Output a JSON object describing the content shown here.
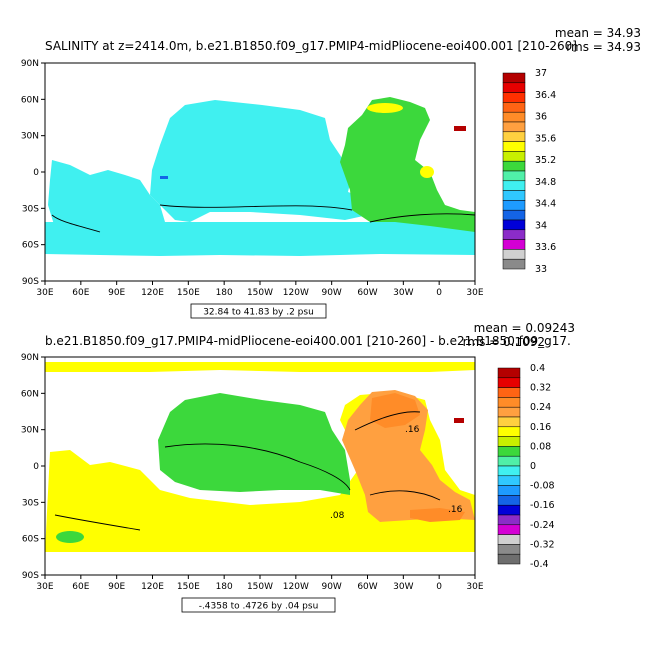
{
  "colors": {
    "land": "#ffffff",
    "c32_8": "#8a8a8a",
    "c33_0": "#d0d0d0",
    "c33_2": "#d400d4",
    "c33_4": "#8b2cc8",
    "c33_6": "#0000d8",
    "c33_8": "#1464e6",
    "c34_0": "#1e9bff",
    "c34_2": "#30c8ff",
    "c34_4": "#40f0f0",
    "c34_6": "#4be8c8",
    "c34_8": "#50f0a8",
    "c35_0": "#3cd83c",
    "c35_2": "#3cd83c",
    "c35_4": "#c8f000",
    "c35_6": "#ffff00",
    "c35_8": "#ffd040",
    "c36_0": "#ffa040",
    "c36_2": "#ff8c28",
    "c36_4": "#ff6414",
    "c36_6": "#ff3000",
    "c36_8": "#e60000",
    "c37_0": "#b40000"
  },
  "top_panel": {
    "title": "SALINITY at z=2414.0m, b.e21.B1850.f09_g17.PMIP4-midPliocene-eoi400.001 [210-260]",
    "mean_label": "mean = 34.93",
    "rms_label": "rms = 34.93",
    "range_label": "32.84 to 41.83 by .2 psu",
    "colorbar_labels": [
      "37",
      "36.4",
      "36",
      "35.6",
      "35.2",
      "34.8",
      "34.4",
      "34",
      "33.6",
      "33"
    ],
    "colorbar_colors": [
      "#b40000",
      "#e60000",
      "#ff3000",
      "#ff6414",
      "#ff8c28",
      "#ffa040",
      "#ffd040",
      "#ffff00",
      "#c8f000",
      "#3cd83c",
      "#50f0a8",
      "#40f0f0",
      "#30c8ff",
      "#1e9bff",
      "#1464e6",
      "#0000d8",
      "#8b2cc8",
      "#d400d4",
      "#d0d0d0",
      "#8a8a8a"
    ]
  },
  "bottom_panel": {
    "title": "b.e21.B1850.f09_g17.PMIP4-midPliocene-eoi400.001 [210-260] - b.e21.B1850.f09_g17.",
    "mean_label": "mean = 0.09243",
    "rms_label": "rms = 0.1092",
    "range_label": "-.4358 to .4726 by .04 psu",
    "contour_labels": [
      ".16",
      ".08",
      ".16"
    ],
    "colorbar_labels": [
      "0.4",
      "0.32",
      "0.24",
      "0.16",
      "0.08",
      "0",
      "-0.08",
      "-0.16",
      "-0.24",
      "-0.32",
      "-0.4"
    ],
    "colorbar_colors": [
      "#b40000",
      "#e60000",
      "#ff6414",
      "#ff8c28",
      "#ffa040",
      "#ffd040",
      "#ffff00",
      "#c8f000",
      "#3cd83c",
      "#50f0a8",
      "#40f0f0",
      "#30c8ff",
      "#1e9bff",
      "#1464e6",
      "#0000d8",
      "#8b2cc8",
      "#d400d4",
      "#d0d0d0",
      "#8a8a8a",
      "#6e6e6e"
    ]
  },
  "axes": {
    "lat_labels": [
      "90N",
      "60N",
      "30N",
      "0",
      "30S",
      "60S",
      "90S"
    ],
    "lon_labels": [
      "30E",
      "60E",
      "90E",
      "120E",
      "150E",
      "180",
      "150W",
      "120W",
      "90W",
      "60W",
      "30W",
      "0",
      "30E"
    ]
  }
}
